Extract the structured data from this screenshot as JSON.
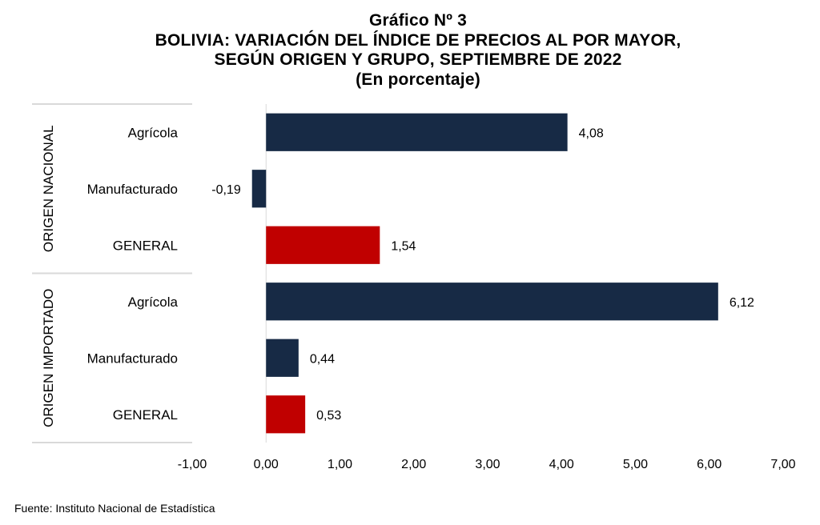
{
  "chart_data": {
    "type": "bar",
    "orientation": "horizontal",
    "title_lines": [
      "Gráfico Nº 3",
      "BOLIVIA: VARIACIÓN DEL ÍNDICE DE PRECIOS AL POR MAYOR,",
      "SEGÚN ORIGEN Y GRUPO, SEPTIEMBRE DE 2022",
      "(En porcentaje)"
    ],
    "groups": [
      {
        "name": "ORIGEN NACIONAL",
        "categories": [
          "Agrícola",
          "Manufacturado",
          "GENERAL"
        ],
        "values": [
          4.08,
          -0.19,
          1.54
        ],
        "labels": [
          "4,08",
          "-0,19",
          "1,54"
        ]
      },
      {
        "name": "ORIGEN IMPORTADO",
        "categories": [
          "Agrícola",
          "Manufacturado",
          "GENERAL"
        ],
        "values": [
          6.12,
          0.44,
          0.53
        ],
        "labels": [
          "6,12",
          "0,44",
          "0,53"
        ]
      }
    ],
    "xlim": [
      -1,
      7
    ],
    "xticks": [
      -1,
      0,
      1,
      2,
      3,
      4,
      5,
      6,
      7
    ],
    "xtick_labels": [
      "-1,00",
      "0,00",
      "1,00",
      "2,00",
      "3,00",
      "4,00",
      "5,00",
      "6,00",
      "7,00"
    ],
    "colors": {
      "category": "#172a45",
      "general": "#c00000",
      "separator": "#d9d9d9",
      "zero_line": "#d9d9d9"
    },
    "grid": false,
    "legend": "none"
  },
  "source": "Fuente: Instituto Nacional de Estadística"
}
